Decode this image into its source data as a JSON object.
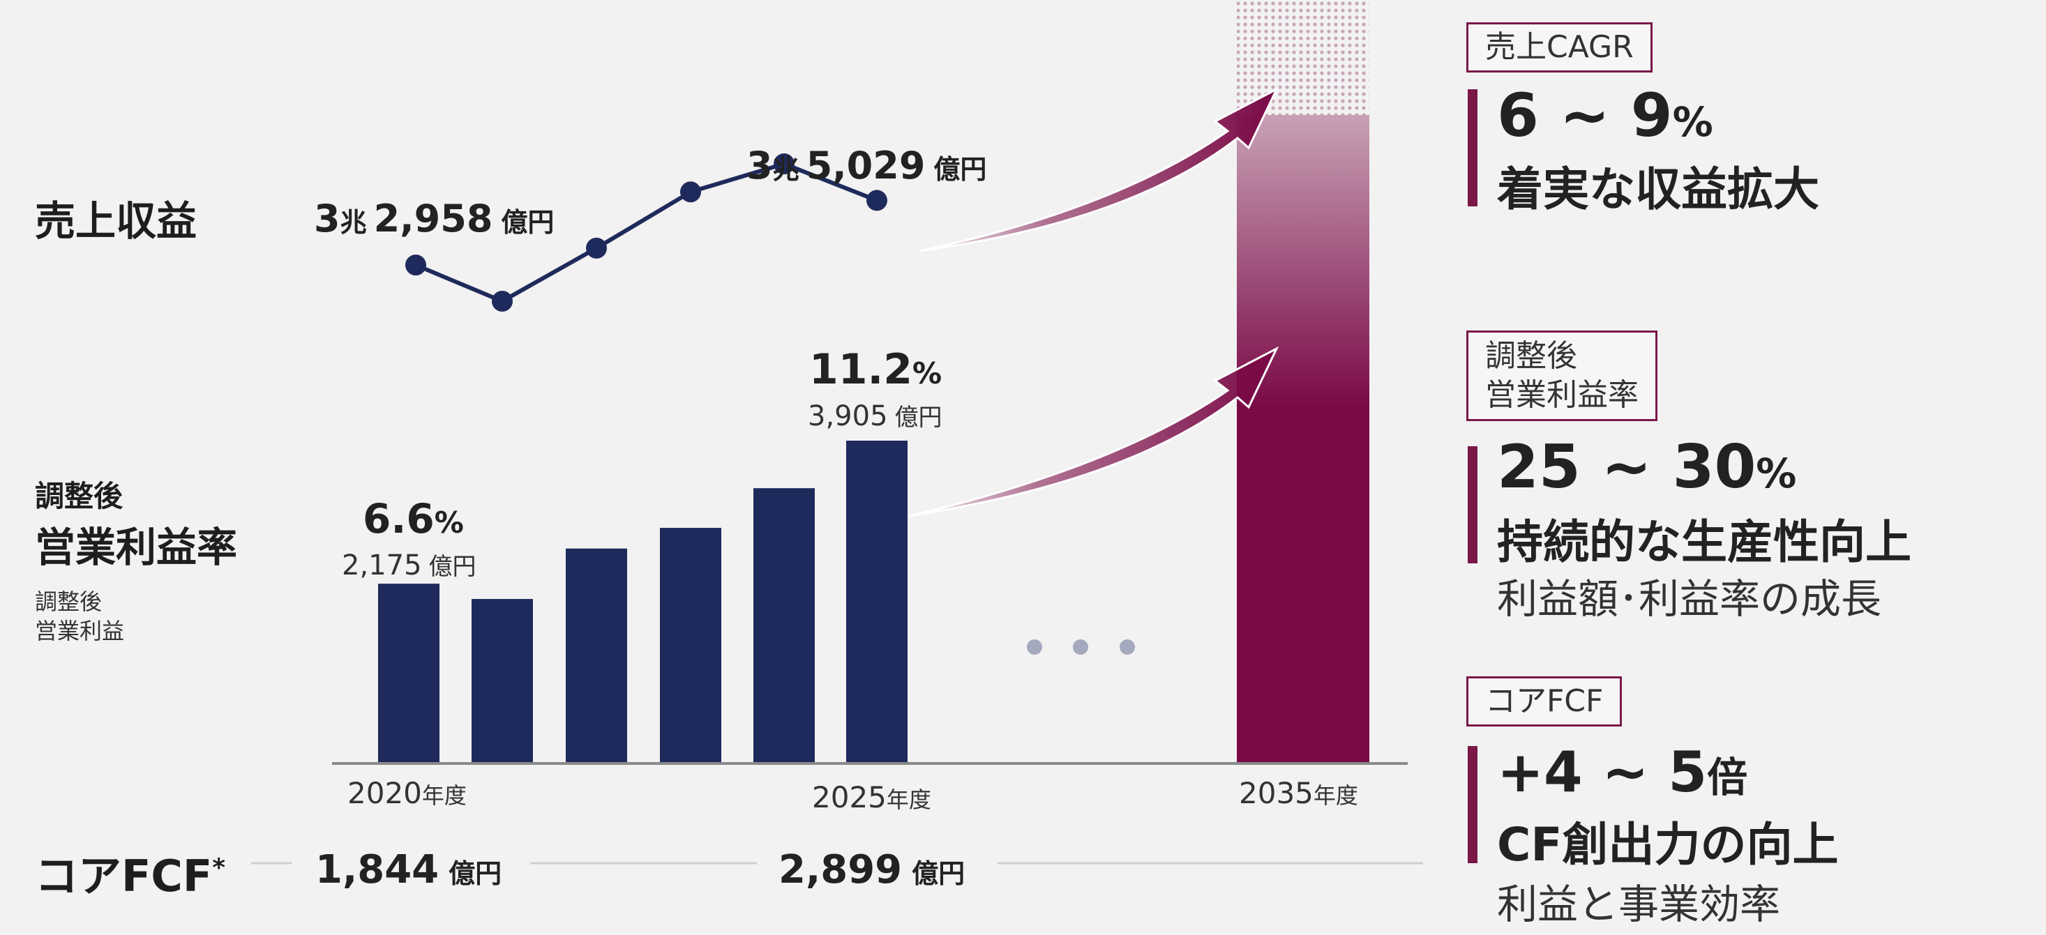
{
  "left_labels": {
    "revenue": "売上収益",
    "margin_small": "調整後",
    "margin_big": "営業利益率",
    "op_income_line1": "調整後",
    "op_income_line2": "営業利益",
    "fcf": "コアFCF",
    "fcf_star": "*"
  },
  "revenue_labels": {
    "start_a": "3",
    "start_b": "兆",
    "start_c": "2,958",
    "start_d": "億円",
    "end_a": "3",
    "end_b": "兆",
    "end_c": "5,029",
    "end_d": "億円"
  },
  "margin_labels": {
    "start_pct": "6.6",
    "start_pct_sym": "%",
    "start_amt": "2,175",
    "start_amt_unit": "億円",
    "end_pct": "11.2",
    "end_pct_sym": "%",
    "end_amt": "3,905",
    "end_amt_unit": "億円"
  },
  "axis": {
    "x2020": "2020",
    "x2025": "2025",
    "x2035": "2035",
    "suffix": "年度"
  },
  "fcf_values": {
    "start": "1,844",
    "start_unit": "億円",
    "end": "2,899",
    "end_unit": "億円"
  },
  "right_panel": {
    "box1": "売上CAGR",
    "val1_a": "6 ~ 9",
    "val1_b": "%",
    "desc1": "着実な収益拡大",
    "box2_line1": "調整後",
    "box2_line2": "営業利益率",
    "val2_a": "25 ~ 30",
    "val2_b": "%",
    "desc2": "持続的な生産性向上",
    "sub2": "利益額･利益率の成長",
    "box3": "コアFCF",
    "val3_a": "+4 ~ 5",
    "val3_b": "倍",
    "desc3": "CF創出力の向上",
    "sub3": "利益と事業効率"
  },
  "colors": {
    "navy": "#1f2a5c",
    "maroon": "#7a0a46",
    "background": "#f2f2f2",
    "ellipsis_gray": "#a4a9bd"
  },
  "chart_data": [
    {
      "type": "line",
      "x": [
        2020,
        2021,
        2022,
        2023,
        2024,
        2025
      ],
      "series": [
        {
          "name": "売上収益",
          "values": [
            32958,
            31800,
            33500,
            35300,
            36200,
            35029
          ]
        }
      ],
      "unit": "億円",
      "labeled_points": {
        "2020": "3兆 2,958 億円",
        "2025": "3兆 5,029 億円"
      }
    },
    {
      "type": "bar",
      "categories": [
        "2020",
        "2021",
        "2022",
        "2023",
        "2024",
        "2025"
      ],
      "series": [
        {
          "name": "調整後営業利益",
          "values": [
            2175,
            1990,
            2600,
            2850,
            3330,
            3905
          ]
        }
      ],
      "unit": "億円",
      "margin_labels_pct": {
        "2020": 6.6,
        "2025": 11.2
      },
      "xlabel_ticks": [
        "2020年度",
        "2025年度",
        "2035年度"
      ]
    }
  ]
}
